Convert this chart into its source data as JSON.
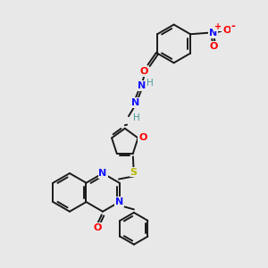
{
  "background_color": "#e8e8e8",
  "figure_size": [
    3.0,
    3.0
  ],
  "dpi": 100,
  "bond_color": "#1a1a1a",
  "bond_width": 1.4,
  "atom_colors": {
    "N": "#1414ff",
    "O": "#ff0000",
    "S": "#b8b800",
    "H": "#4a9a9a",
    "C": "#1a1a1a"
  },
  "font_size_atom": 8.5,
  "font_size_small": 7.0,
  "font_size_charge": 7.5
}
